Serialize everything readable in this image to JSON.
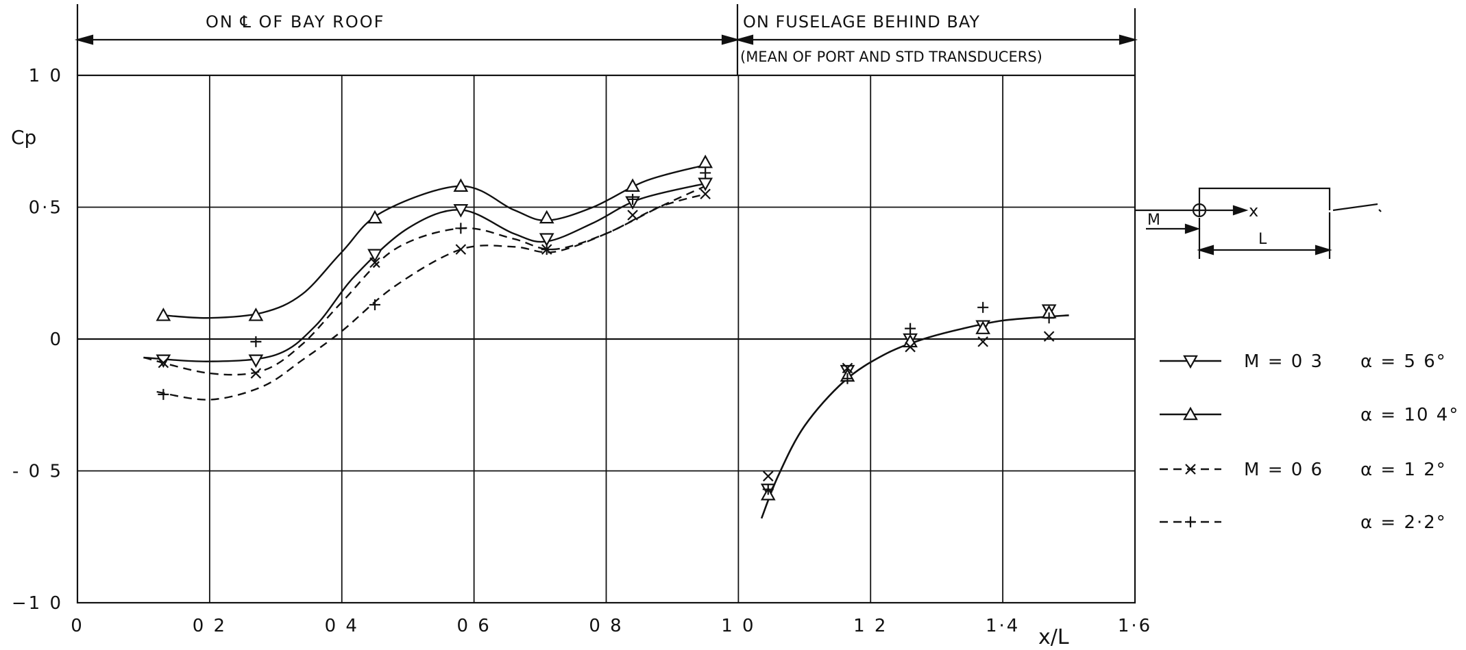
{
  "chart_data": {
    "type": "line",
    "xlabel": "x/L",
    "ylabel": "Cp",
    "xlim": [
      0,
      1.6
    ],
    "ylim": [
      -1.0,
      1.0
    ],
    "grid": true,
    "x_ticks": [
      {
        "v": 0,
        "label": "0"
      },
      {
        "v": 0.2,
        "label": "0 2"
      },
      {
        "v": 0.4,
        "label": "0 4"
      },
      {
        "v": 0.6,
        "label": "0 6"
      },
      {
        "v": 0.8,
        "label": "0 8"
      },
      {
        "v": 1.0,
        "label": "1 0"
      },
      {
        "v": 1.2,
        "label": "1 2"
      },
      {
        "v": 1.4,
        "label": "1·4"
      },
      {
        "v": 1.6,
        "label": "1·6"
      }
    ],
    "y_ticks": [
      {
        "v": 1.0,
        "label": "1 0"
      },
      {
        "v": 0.5,
        "label": "0·5"
      },
      {
        "v": 0,
        "label": "0"
      },
      {
        "v": -0.5,
        "label": "- 0 5"
      },
      {
        "v": -1.0,
        "label": "−1 0"
      }
    ],
    "regions": [
      {
        "label": "ON ℄ OF BAY ROOF",
        "x_range": [
          0,
          1.0
        ]
      },
      {
        "label": "ON FUSELAGE BEHIND BAY",
        "sublabel": "(MEAN OF PORT AND STD TRANSDUCERS)",
        "x_range": [
          1.0,
          1.6
        ]
      }
    ],
    "series": [
      {
        "marker": "triangle-down",
        "linestyle": "solid",
        "legend_m": "M = 0 3",
        "legend_alpha": "α = 5 6°",
        "points": [
          [
            0.13,
            -0.08
          ],
          [
            0.27,
            -0.08
          ],
          [
            0.45,
            0.32
          ],
          [
            0.58,
            0.49
          ],
          [
            0.71,
            0.38
          ],
          [
            0.84,
            0.52
          ],
          [
            0.95,
            0.59
          ],
          [
            1.045,
            -0.57
          ],
          [
            1.165,
            -0.12
          ],
          [
            1.26,
            0.0
          ],
          [
            1.37,
            0.05
          ],
          [
            1.47,
            0.11
          ]
        ],
        "curve": [
          [
            0.1,
            -0.07
          ],
          [
            0.2,
            -0.085
          ],
          [
            0.3,
            -0.06
          ],
          [
            0.36,
            0.05
          ],
          [
            0.42,
            0.24
          ],
          [
            0.5,
            0.42
          ],
          [
            0.58,
            0.49
          ],
          [
            0.66,
            0.4
          ],
          [
            0.71,
            0.37
          ],
          [
            0.78,
            0.44
          ],
          [
            0.85,
            0.53
          ],
          [
            0.95,
            0.59
          ]
        ]
      },
      {
        "marker": "triangle-up",
        "linestyle": "solid",
        "legend_m": "",
        "legend_alpha": "α = 10 4°",
        "points": [
          [
            0.13,
            0.09
          ],
          [
            0.27,
            0.09
          ],
          [
            0.45,
            0.46
          ],
          [
            0.58,
            0.58
          ],
          [
            0.71,
            0.46
          ],
          [
            0.84,
            0.58
          ],
          [
            0.95,
            0.67
          ],
          [
            1.045,
            -0.59
          ],
          [
            1.165,
            -0.14
          ],
          [
            1.26,
            -0.01
          ],
          [
            1.37,
            0.04
          ],
          [
            1.47,
            0.1
          ]
        ],
        "curve": [
          [
            0.13,
            0.09
          ],
          [
            0.2,
            0.08
          ],
          [
            0.28,
            0.1
          ],
          [
            0.34,
            0.17
          ],
          [
            0.4,
            0.33
          ],
          [
            0.46,
            0.48
          ],
          [
            0.58,
            0.58
          ],
          [
            0.66,
            0.49
          ],
          [
            0.71,
            0.45
          ],
          [
            0.78,
            0.5
          ],
          [
            0.86,
            0.6
          ],
          [
            0.95,
            0.66
          ]
        ]
      },
      {
        "marker": "x",
        "linestyle": "dashed",
        "legend_m": "M = 0 6",
        "legend_alpha": "α = 1 2°",
        "points": [
          [
            0.13,
            -0.09
          ],
          [
            0.27,
            -0.13
          ],
          [
            0.45,
            0.29
          ],
          [
            0.58,
            0.34
          ],
          [
            0.71,
            0.34
          ],
          [
            0.84,
            0.47
          ],
          [
            0.95,
            0.55
          ],
          [
            1.045,
            -0.52
          ],
          [
            1.165,
            -0.11
          ],
          [
            1.26,
            -0.03
          ],
          [
            1.37,
            -0.01
          ],
          [
            1.47,
            0.01
          ]
        ],
        "curve": [
          [
            0.1,
            -0.07
          ],
          [
            0.2,
            -0.13
          ],
          [
            0.28,
            -0.12
          ],
          [
            0.34,
            -0.02
          ],
          [
            0.4,
            0.14
          ],
          [
            0.48,
            0.34
          ],
          [
            0.58,
            0.42
          ],
          [
            0.66,
            0.38
          ],
          [
            0.72,
            0.34
          ],
          [
            0.8,
            0.4
          ],
          [
            0.88,
            0.5
          ],
          [
            0.95,
            0.55
          ]
        ]
      },
      {
        "marker": "plus",
        "linestyle": "dashed",
        "legend_m": "",
        "legend_alpha": "α = 2·2°",
        "points": [
          [
            0.13,
            -0.21
          ],
          [
            0.27,
            -0.01
          ],
          [
            0.45,
            0.13
          ],
          [
            0.58,
            0.42
          ],
          [
            0.71,
            0.34
          ],
          [
            0.84,
            0.53
          ],
          [
            0.95,
            0.63
          ],
          [
            1.045,
            -0.57
          ],
          [
            1.165,
            -0.15
          ],
          [
            1.26,
            0.04
          ],
          [
            1.37,
            0.12
          ],
          [
            1.47,
            0.08
          ]
        ],
        "curve": [
          [
            0.12,
            -0.2
          ],
          [
            0.2,
            -0.23
          ],
          [
            0.28,
            -0.18
          ],
          [
            0.34,
            -0.08
          ],
          [
            0.4,
            0.03
          ],
          [
            0.48,
            0.2
          ],
          [
            0.58,
            0.34
          ],
          [
            0.66,
            0.35
          ],
          [
            0.72,
            0.33
          ],
          [
            0.8,
            0.4
          ],
          [
            0.88,
            0.5
          ],
          [
            0.95,
            0.58
          ]
        ]
      }
    ],
    "fuselage_curve": [
      [
        1.035,
        -0.68
      ],
      [
        1.06,
        -0.52
      ],
      [
        1.1,
        -0.33
      ],
      [
        1.16,
        -0.16
      ],
      [
        1.22,
        -0.06
      ],
      [
        1.28,
        0.0
      ],
      [
        1.34,
        0.04
      ],
      [
        1.4,
        0.07
      ],
      [
        1.47,
        0.085
      ],
      [
        1.5,
        0.09
      ]
    ],
    "inset": {
      "flow_label": "M",
      "x_label": "x",
      "length_label": "L"
    }
  }
}
